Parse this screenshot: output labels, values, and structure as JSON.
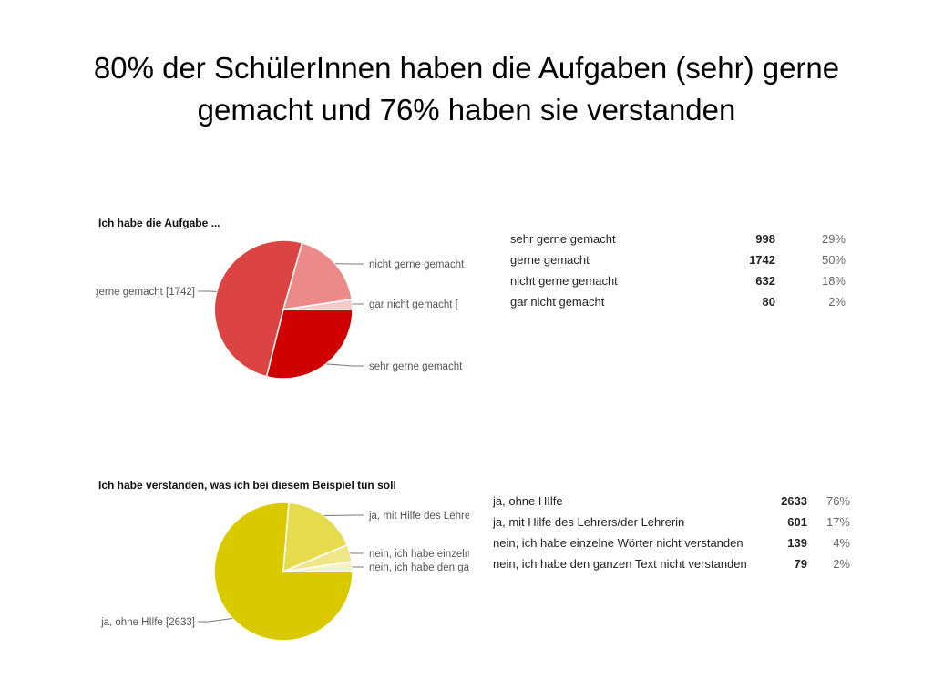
{
  "slide": {
    "title_line1": "80% der SchülerInnen haben die Aufgaben (sehr) gerne",
    "title_line2": "gemacht und 76% haben sie verstanden"
  },
  "chart_data": [
    {
      "type": "pie",
      "title": "Ich habe die Aufgabe ...",
      "slices": [
        {
          "label": "sehr gerne gemacht",
          "value": 998,
          "percent": "29%",
          "color": "#d10000",
          "callout": "sehr gerne gemacht"
        },
        {
          "label": "gerne gemacht",
          "value": 1742,
          "percent": "50%",
          "color": "#dc4444",
          "callout": "gerne gemacht [1742]"
        },
        {
          "label": "nicht gerne gemacht",
          "value": 632,
          "percent": "18%",
          "color": "#ec8a8a",
          "callout": "nicht gerne gemacht"
        },
        {
          "label": "gar nicht gemacht",
          "value": 80,
          "percent": "2%",
          "color": "#f6caca",
          "callout": "gar nicht gemacht ["
        }
      ]
    },
    {
      "type": "pie",
      "title": "Ich habe verstanden, was ich bei diesem Beispiel tun soll",
      "slices": [
        {
          "label": "ja, ohne HIlfe",
          "value": 2633,
          "percent": "76%",
          "color": "#dbc900",
          "callout": "ja, ohne HIlfe [2633]"
        },
        {
          "label": "ja, mit Hilfe des Lehrers/der Lehrerin",
          "value": 601,
          "percent": "17%",
          "color": "#e6da4d",
          "callout": "ja, mit Hilfe des Lehrers"
        },
        {
          "label": "nein, ich habe einzelne Wörter nicht verstanden",
          "value": 139,
          "percent": "4%",
          "color": "#efe68a",
          "callout": "nein, ich habe einzelne"
        },
        {
          "label": "nein, ich habe den ganzen Text nicht verstanden",
          "value": 79,
          "percent": "2%",
          "color": "#f6f0c2",
          "callout": "nein, ich habe den ganzen"
        }
      ]
    }
  ]
}
